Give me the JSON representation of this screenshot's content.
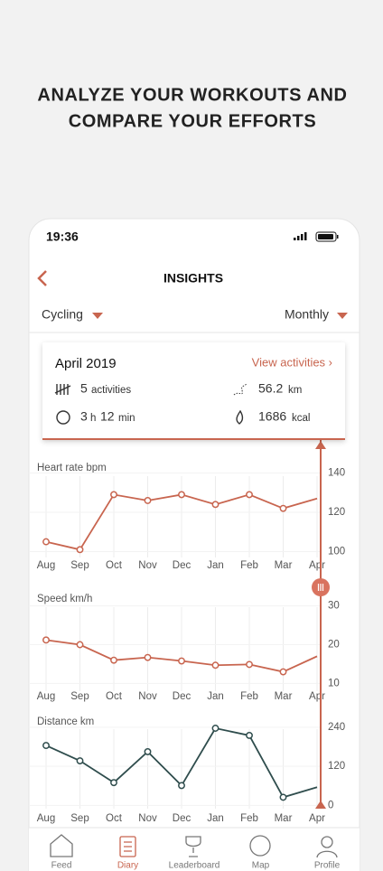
{
  "headline": [
    "ANALYZE YOUR WORKOUTS AND",
    "COMPARE YOUR EFFORTS"
  ],
  "status": {
    "time": "19:36"
  },
  "header": {
    "title": "INSIGHTS"
  },
  "filters": {
    "sport": "Cycling",
    "period": "Monthly"
  },
  "summary": {
    "month": "April 2019",
    "link": "View activities ›",
    "activities": {
      "value": 5,
      "unit": "activities"
    },
    "distance": {
      "value": 56.2,
      "unit": "km"
    },
    "duration": {
      "hours": 3,
      "hours_unit": "h",
      "minutes": 12,
      "minutes_unit": "min"
    },
    "energy": {
      "value": 1686,
      "unit": "kcal"
    }
  },
  "chart_data": [
    {
      "type": "line",
      "title": "Heart rate bpm",
      "categories": [
        "Aug",
        "Sep",
        "Oct",
        "Nov",
        "Dec",
        "Jan",
        "Feb",
        "Mar",
        "Apr"
      ],
      "series": [
        {
          "color": "#c8654f",
          "values": [
            105,
            101,
            129,
            126,
            129,
            124,
            129,
            122,
            127
          ]
        }
      ],
      "ylim": [
        97,
        143
      ],
      "yticks": [
        100,
        120,
        140
      ]
    },
    {
      "type": "line",
      "title": "Speed km/h",
      "categories": [
        "Aug",
        "Sep",
        "Oct",
        "Nov",
        "Dec",
        "Jan",
        "Feb",
        "Mar",
        "Apr"
      ],
      "series": [
        {
          "color": "#c8654f",
          "values": [
            21.2,
            20,
            16,
            16.7,
            15.8,
            14.7,
            14.9,
            13,
            17
          ]
        }
      ],
      "ylim": [
        8,
        32
      ],
      "yticks": [
        10,
        20,
        30
      ]
    },
    {
      "type": "line",
      "title": "Distance km",
      "categories": [
        "Aug",
        "Sep",
        "Oct",
        "Nov",
        "Dec",
        "Jan",
        "Feb",
        "Mar",
        "Apr"
      ],
      "series": [
        {
          "color": "#2f4d4d",
          "values": [
            184,
            137,
            70,
            165,
            61,
            237,
            215,
            25,
            56
          ]
        }
      ],
      "ylim": [
        -10,
        262
      ],
      "yticks": [
        0,
        120,
        240
      ]
    }
  ],
  "nav": [
    "Feed",
    "Diary",
    "Leaderboard",
    "Map",
    "Profile"
  ]
}
